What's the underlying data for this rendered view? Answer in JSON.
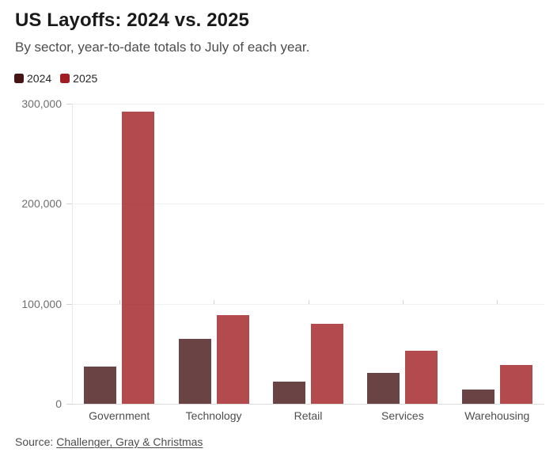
{
  "header": {
    "title": "US Layoffs: 2024 vs. 2025",
    "subtitle": "By sector, year-to-date totals to July of each year."
  },
  "legend": {
    "items": [
      {
        "label": "2024",
        "color": "#451516"
      },
      {
        "label": "2025",
        "color": "#a01d21"
      }
    ]
  },
  "chart_data": {
    "type": "bar",
    "title": "US Layoffs: 2024 vs. 2025",
    "subtitle": "By sector, year-to-date totals to July of each year.",
    "categories": [
      "Government",
      "Technology",
      "Retail",
      "Services",
      "Warehousing"
    ],
    "series": [
      {
        "name": "2024",
        "color": "#451516",
        "values": [
          37000,
          65000,
          22500,
          31000,
          14000
        ]
      },
      {
        "name": "2025",
        "color": "#a01d21",
        "values": [
          292000,
          89000,
          80000,
          53000,
          38500
        ]
      }
    ],
    "ylim": [
      0,
      300000
    ],
    "yticks": [
      0,
      100000,
      200000,
      300000
    ],
    "ytick_labels": [
      "0",
      "100,000",
      "200,000",
      "300,000"
    ],
    "xlabel": "",
    "ylabel": "",
    "grid": "horizontal",
    "legend_position": "top-left",
    "bar_opacity": 0.8
  },
  "source": {
    "prefix": "Source:",
    "link_text": "Challenger, Gray & Christmas"
  }
}
